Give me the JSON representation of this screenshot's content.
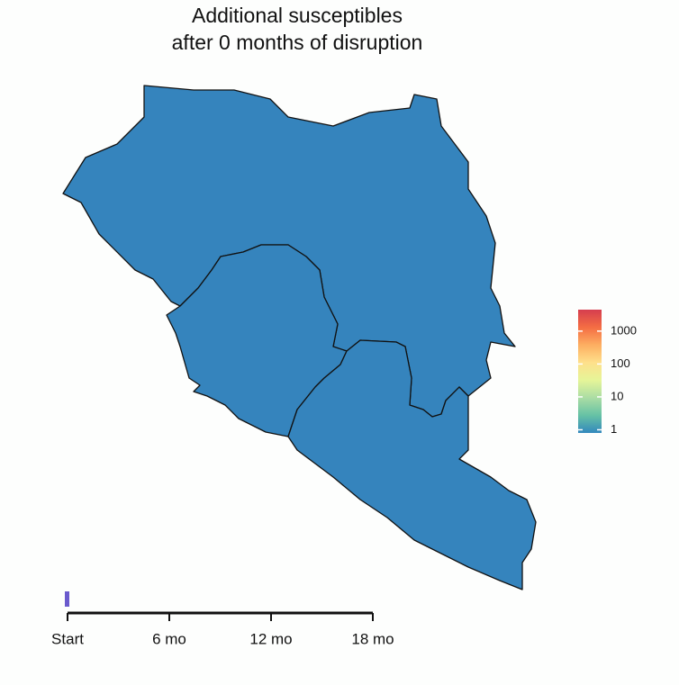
{
  "map": {
    "title_lines": [
      "Additional susceptibles",
      "after 0 months of disruption"
    ],
    "fill": "#3584bd"
  },
  "legend": {
    "scale": "log",
    "lim": [
      0.8,
      4500
    ],
    "ticks": [
      1,
      10,
      100,
      1000
    ],
    "colors": [
      "#3288bd",
      "#66c2a5",
      "#abdda4",
      "#e6f598",
      "#fee08b",
      "#fdae61",
      "#f46d43",
      "#d53e4f"
    ]
  },
  "timeline": {
    "xlim": [
      0,
      18
    ],
    "xticks": [
      {
        "value": 0,
        "label": "Start"
      },
      {
        "value": 6,
        "label": "6 mo"
      },
      {
        "value": 12,
        "label": "12 mo"
      },
      {
        "value": 18,
        "label": "18 mo"
      }
    ],
    "value": 0,
    "color": "#6a5acd"
  }
}
